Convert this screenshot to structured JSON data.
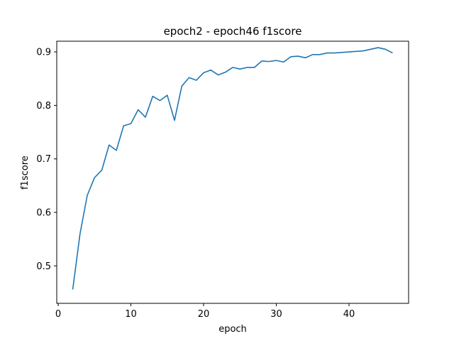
{
  "chart_data": {
    "type": "line",
    "title": "epoch2 - epoch46 f1score",
    "xlabel": "epoch",
    "ylabel": "f1score",
    "xlim": [
      -0.2,
      48.2
    ],
    "ylim": [
      0.43,
      0.92
    ],
    "xticks": [
      0,
      10,
      20,
      30,
      40
    ],
    "yticks": [
      0.5,
      0.6,
      0.7,
      0.8,
      0.9
    ],
    "grid": false,
    "series": [
      {
        "color": "#1f77b4",
        "x": [
          2,
          3,
          4,
          5,
          6,
          7,
          8,
          9,
          10,
          11,
          12,
          13,
          14,
          15,
          16,
          17,
          18,
          19,
          20,
          21,
          22,
          23,
          24,
          25,
          26,
          27,
          28,
          29,
          30,
          31,
          32,
          33,
          34,
          35,
          36,
          37,
          38,
          39,
          40,
          41,
          42,
          43,
          44,
          45,
          46
        ],
        "y": [
          0.456,
          0.56,
          0.632,
          0.665,
          0.679,
          0.726,
          0.716,
          0.762,
          0.766,
          0.792,
          0.778,
          0.817,
          0.809,
          0.819,
          0.772,
          0.836,
          0.852,
          0.847,
          0.861,
          0.866,
          0.857,
          0.862,
          0.871,
          0.868,
          0.871,
          0.871,
          0.883,
          0.882,
          0.884,
          0.881,
          0.891,
          0.892,
          0.889,
          0.895,
          0.895,
          0.898,
          0.898,
          0.899,
          0.9,
          0.901,
          0.902,
          0.905,
          0.908,
          0.905,
          0.898
        ]
      }
    ]
  }
}
